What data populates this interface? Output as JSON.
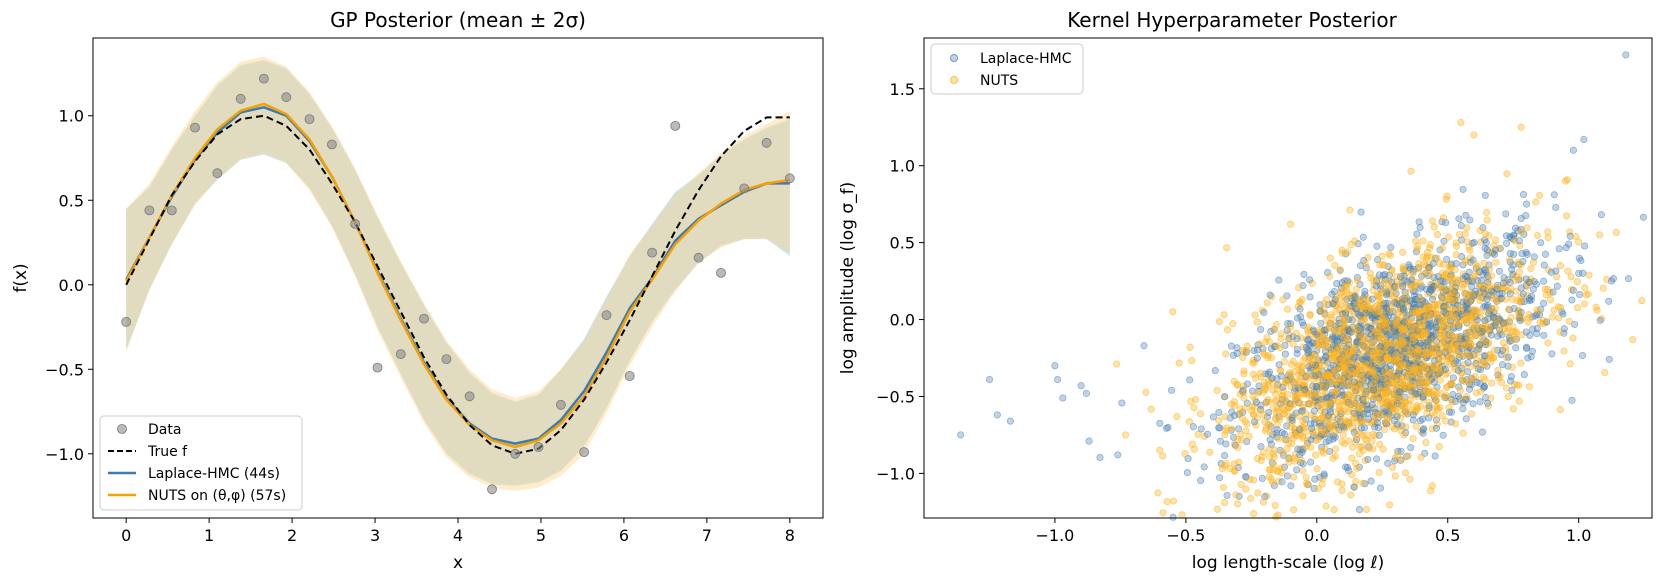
{
  "chart_data": [
    {
      "type": "line",
      "title": "GP Posterior (mean ± 2σ)",
      "xlabel": "x",
      "ylabel": "f(x)",
      "xlim": [
        -0.4,
        8.4
      ],
      "ylim": [
        -1.38,
        1.46
      ],
      "xticks": [
        0,
        1,
        2,
        3,
        4,
        5,
        6,
        7,
        8
      ],
      "xtick_labels": [
        "0",
        "1",
        "2",
        "3",
        "4",
        "5",
        "6",
        "7",
        "8"
      ],
      "yticks": [
        -1.0,
        -0.5,
        0.0,
        0.5,
        1.0
      ],
      "ytick_labels": [
        "−1.0",
        "−0.5",
        "0.0",
        "0.5",
        "1.0"
      ],
      "legend_position": "lower-left",
      "colors": {
        "data": "#8c8c8c",
        "true_f": "#000000",
        "laplace": "#3a7ab5",
        "nuts": "#f5a100",
        "laplace_band": "#a9cfe6",
        "nuts_band": "#ffd48a",
        "overlap_band": "#dfd9bf"
      },
      "legend": [
        "Data",
        "True f",
        "Laplace-HMC (44s)",
        "NUTS on (θ,φ) (57s)"
      ],
      "data_points": {
        "x": [
          0.0,
          0.28,
          0.55,
          0.83,
          1.1,
          1.38,
          1.66,
          1.93,
          2.21,
          2.48,
          2.76,
          3.03,
          3.31,
          3.59,
          3.86,
          4.14,
          4.41,
          4.69,
          4.97,
          5.24,
          5.52,
          5.79,
          6.07,
          6.34,
          6.62,
          6.9,
          7.17,
          7.45,
          7.72,
          8.0
        ],
        "y": [
          -0.22,
          0.44,
          0.44,
          0.93,
          0.66,
          1.1,
          1.22,
          1.11,
          0.98,
          0.83,
          0.36,
          -0.49,
          -0.41,
          -0.2,
          -0.44,
          -0.66,
          -1.21,
          -1.0,
          -0.96,
          -0.71,
          -0.99,
          -0.18,
          -0.54,
          0.19,
          0.94,
          0.16,
          0.07,
          0.57,
          0.84,
          0.63
        ]
      },
      "series": [
        {
          "name": "True f",
          "style": "dashed",
          "x": [
            0.0,
            0.28,
            0.55,
            0.83,
            1.1,
            1.38,
            1.66,
            1.93,
            2.21,
            2.48,
            2.76,
            3.03,
            3.31,
            3.59,
            3.86,
            4.14,
            4.41,
            4.69,
            4.97,
            5.24,
            5.52,
            5.79,
            6.07,
            6.34,
            6.62,
            6.9,
            7.17,
            7.45,
            7.72,
            8.0
          ],
          "values": [
            0.0,
            0.27,
            0.53,
            0.73,
            0.89,
            0.98,
            1.0,
            0.94,
            0.8,
            0.6,
            0.37,
            0.11,
            -0.16,
            -0.43,
            -0.65,
            -0.83,
            -0.95,
            -1.0,
            -0.97,
            -0.86,
            -0.68,
            -0.46,
            -0.21,
            0.05,
            0.32,
            0.56,
            0.76,
            0.91,
            0.99,
            0.99
          ]
        },
        {
          "name": "Laplace-HMC (44s)",
          "x": [
            0.0,
            0.28,
            0.55,
            0.83,
            1.1,
            1.38,
            1.66,
            1.93,
            2.21,
            2.48,
            2.76,
            3.03,
            3.31,
            3.59,
            3.86,
            4.14,
            4.41,
            4.69,
            4.97,
            5.24,
            5.52,
            5.79,
            6.07,
            6.34,
            6.62,
            6.9,
            7.17,
            7.45,
            7.72,
            8.0
          ],
          "values": [
            0.03,
            0.28,
            0.52,
            0.74,
            0.9,
            1.02,
            1.05,
            1.0,
            0.85,
            0.64,
            0.37,
            0.08,
            -0.2,
            -0.46,
            -0.67,
            -0.82,
            -0.91,
            -0.94,
            -0.91,
            -0.8,
            -0.63,
            -0.4,
            -0.14,
            0.04,
            0.26,
            0.39,
            0.47,
            0.55,
            0.6,
            0.6
          ],
          "band_upper": [
            0.45,
            0.58,
            0.8,
            1.0,
            1.18,
            1.3,
            1.33,
            1.28,
            1.13,
            0.93,
            0.68,
            0.4,
            0.13,
            -0.12,
            -0.34,
            -0.52,
            -0.64,
            -0.69,
            -0.65,
            -0.5,
            -0.32,
            -0.07,
            0.17,
            0.36,
            0.55,
            0.65,
            0.77,
            0.86,
            0.93,
            0.98
          ],
          "band_lower": [
            -0.39,
            -0.03,
            0.24,
            0.48,
            0.62,
            0.74,
            0.77,
            0.72,
            0.57,
            0.35,
            0.06,
            -0.25,
            -0.53,
            -0.8,
            -1.0,
            -1.12,
            -1.18,
            -1.19,
            -1.17,
            -1.1,
            -0.96,
            -0.73,
            -0.45,
            -0.22,
            -0.03,
            0.13,
            0.23,
            0.27,
            0.27,
            0.17
          ]
        },
        {
          "name": "NUTS on (θ,φ) (57s)",
          "x": [
            0.0,
            0.28,
            0.55,
            0.83,
            1.1,
            1.38,
            1.66,
            1.93,
            2.21,
            2.48,
            2.76,
            3.03,
            3.31,
            3.59,
            3.86,
            4.14,
            4.41,
            4.69,
            4.97,
            5.24,
            5.52,
            5.79,
            6.07,
            6.34,
            6.62,
            6.9,
            7.17,
            7.45,
            7.72,
            8.0
          ],
          "values": [
            0.02,
            0.28,
            0.53,
            0.75,
            0.92,
            1.03,
            1.07,
            1.01,
            0.86,
            0.64,
            0.37,
            0.07,
            -0.21,
            -0.47,
            -0.68,
            -0.83,
            -0.92,
            -0.96,
            -0.92,
            -0.82,
            -0.66,
            -0.43,
            -0.16,
            0.03,
            0.24,
            0.38,
            0.48,
            0.56,
            0.6,
            0.62
          ],
          "band_upper": [
            0.45,
            0.6,
            0.82,
            1.03,
            1.2,
            1.32,
            1.35,
            1.29,
            1.14,
            0.94,
            0.69,
            0.41,
            0.14,
            -0.11,
            -0.33,
            -0.5,
            -0.62,
            -0.67,
            -0.63,
            -0.5,
            -0.33,
            -0.09,
            0.18,
            0.35,
            0.53,
            0.66,
            0.78,
            0.88,
            0.95,
            1.03
          ],
          "band_lower": [
            -0.39,
            -0.03,
            0.24,
            0.47,
            0.63,
            0.74,
            0.78,
            0.72,
            0.56,
            0.34,
            0.05,
            -0.27,
            -0.55,
            -0.82,
            -1.02,
            -1.14,
            -1.2,
            -1.22,
            -1.2,
            -1.13,
            -1.0,
            -0.76,
            -0.48,
            -0.25,
            -0.04,
            0.13,
            0.22,
            0.27,
            0.27,
            0.2
          ]
        }
      ]
    },
    {
      "type": "scatter",
      "title": "Kernel Hyperparameter Posterior",
      "xlabel": "log length-scale  (log ℓ)",
      "ylabel": "log amplitude  (log σ_f)",
      "xlim": [
        -1.5,
        1.28
      ],
      "ylim": [
        -1.29,
        1.83
      ],
      "xticks": [
        -1.0,
        -0.5,
        0.0,
        0.5,
        1.0
      ],
      "xtick_labels": [
        "−1.0",
        "−0.5",
        "0.0",
        "0.5",
        "1.0"
      ],
      "yticks": [
        -1.0,
        -0.5,
        0.0,
        0.5,
        1.0,
        1.5
      ],
      "ytick_labels": [
        "−1.0",
        "−0.5",
        "0.0",
        "0.5",
        "1.0",
        "1.5"
      ],
      "legend_position": "top-left",
      "legend": [
        "Laplace-HMC",
        "NUTS"
      ],
      "colors": {
        "laplace": "#4a82b8",
        "nuts": "#ffb21c"
      },
      "series": [
        {
          "name": "Laplace-HMC",
          "generator": "bivariate-gaussian",
          "count": 1400,
          "mean_x": 0.3,
          "mean_y": -0.2,
          "sd_x": 0.3,
          "sd_y": 0.36,
          "correlation": 0.55,
          "x": [
            -1.36,
            -1.25,
            -1.22,
            -1.17,
            -1.0,
            -0.99,
            -0.88,
            -0.87,
            -0.9,
            -0.97,
            -0.76,
            -0.66,
            1.18,
            0.98,
            1.02,
            1.0
          ],
          "values": [
            -0.75,
            -0.39,
            -0.62,
            -0.66,
            -0.3,
            -0.39,
            -0.48,
            -0.79,
            -0.43,
            -0.51,
            -0.88,
            -0.17,
            1.72,
            1.1,
            1.17,
            0.3
          ]
        },
        {
          "name": "NUTS",
          "generator": "bivariate-gaussian",
          "count": 1800,
          "mean_x": 0.25,
          "mean_y": -0.25,
          "sd_x": 0.3,
          "sd_y": 0.38,
          "correlation": 0.55,
          "x": [
            -0.73,
            -0.6,
            -0.55,
            0.78,
            1.08,
            0.55,
            0.6,
            0.95,
            -0.1,
            0.13
          ],
          "values": [
            -0.75,
            -0.85,
            0.05,
            1.25,
            0.55,
            1.28,
            1.2,
            0.9,
            0.62,
            -1.14
          ]
        }
      ]
    }
  ]
}
